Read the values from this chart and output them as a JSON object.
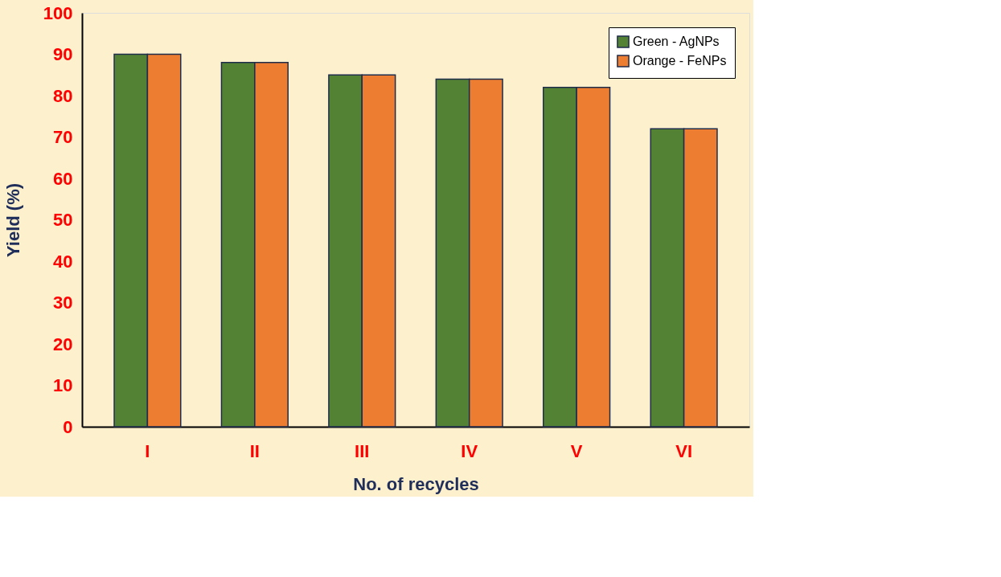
{
  "chart_data": {
    "type": "bar",
    "xlabel": "No. of recycles",
    "ylabel": "Yield (%)",
    "categories": [
      "I",
      "II",
      "III",
      "IV",
      "V",
      "VI"
    ],
    "series": [
      {
        "name": "Green - AgNPs",
        "color": "#548235",
        "values": [
          90,
          88,
          85,
          84,
          82,
          72
        ]
      },
      {
        "name": "Orange - FeNPs",
        "color": "#ed7d31",
        "values": [
          90,
          88,
          85,
          84,
          82,
          72
        ]
      }
    ],
    "ylim": [
      0,
      100
    ],
    "yticks": [
      0,
      10,
      20,
      30,
      40,
      50,
      60,
      70,
      80,
      90,
      100
    ],
    "grid": false,
    "legend": "top right"
  }
}
